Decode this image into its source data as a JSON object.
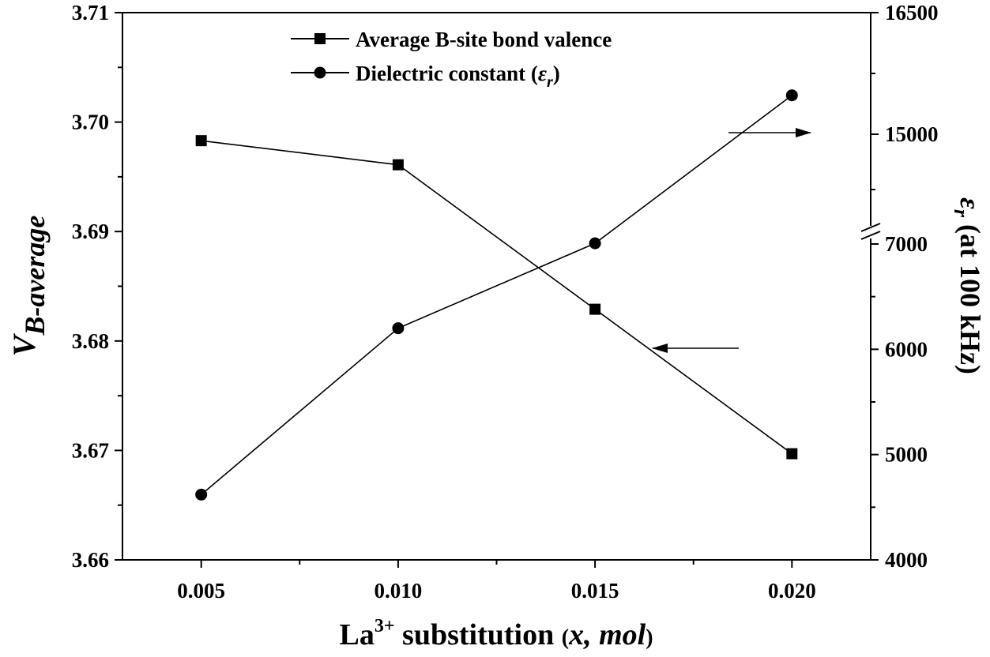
{
  "chart_data": {
    "type": "line",
    "x": [
      0.005,
      0.01,
      0.015,
      0.02
    ],
    "x_tick_labels": [
      "0.005",
      "0.010",
      "0.015",
      "0.020"
    ],
    "xlim": [
      0.003,
      0.022
    ],
    "xlabel": {
      "base": "La",
      "superscript": "3+",
      "middle": " substitution ",
      "paren_open": "(",
      "italic": "x, mol",
      "paren_close": ")"
    },
    "y_left": {
      "label_main": "V",
      "label_sub": "B-average",
      "ylim": [
        3.66,
        3.71
      ],
      "ticks": [
        3.66,
        3.67,
        3.68,
        3.69,
        3.7,
        3.71
      ],
      "tick_labels": [
        "3.66",
        "3.67",
        "3.68",
        "3.69",
        "3.70",
        "3.71"
      ]
    },
    "y_right": {
      "label_symbol": "ε",
      "label_sub": "r",
      "label_rest": " (at  100 kHz)",
      "broken_axis": true,
      "lower_segment": {
        "range": [
          4000,
          7000
        ],
        "ticks": [
          4000,
          5000,
          6000,
          7000
        ]
      },
      "upper_segment": {
        "range": [
          15000,
          16500
        ],
        "ticks": [
          15000,
          16500
        ]
      },
      "tick_labels": [
        "4000",
        "5000",
        "6000",
        "7000",
        "15000",
        "16500"
      ]
    },
    "series": [
      {
        "name": "Average B-site bond valence",
        "axis": "left",
        "marker": "square",
        "values": [
          3.6983,
          3.6961,
          3.6829,
          3.6697
        ]
      },
      {
        "name": "Dielectric constant (εr)",
        "axis": "right",
        "marker": "circle",
        "values": [
          4620,
          6200,
          7050,
          15480
        ]
      }
    ],
    "legend": {
      "position": "top-center",
      "items": [
        {
          "text": "Average B-site bond valence",
          "marker": "square"
        },
        {
          "text_main": "Dielectric constant (",
          "text_symbol": "ε",
          "text_sub": "r",
          "text_end": ")",
          "marker": "circle"
        }
      ]
    },
    "annotations": [
      {
        "type": "arrow",
        "points_to": "right axis"
      },
      {
        "type": "arrow",
        "points_to": "left axis"
      }
    ],
    "colors": {
      "line": "#000000",
      "marker": "#000000",
      "background": "#ffffff"
    }
  }
}
